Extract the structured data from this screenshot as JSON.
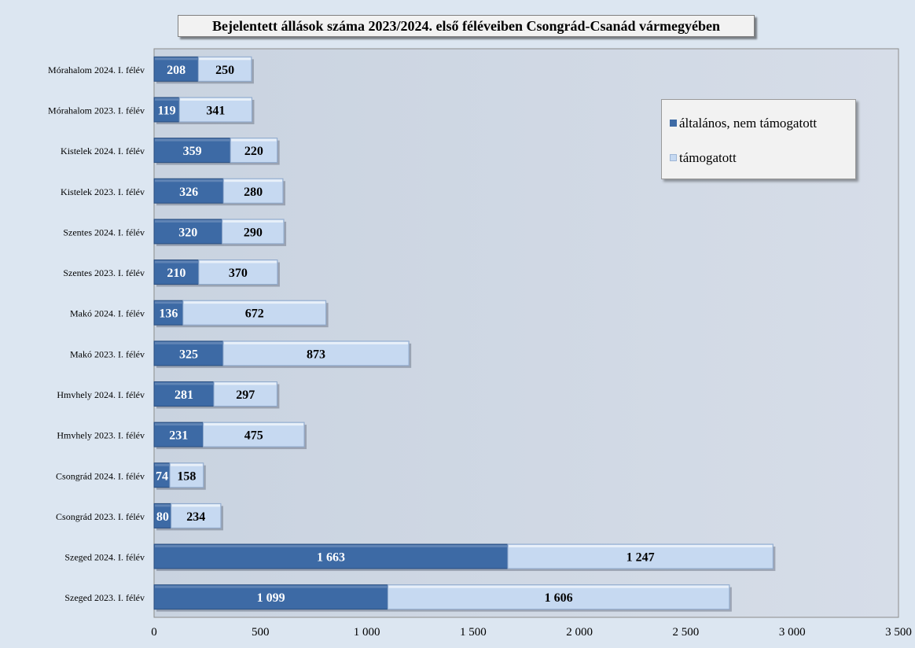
{
  "chart_data": {
    "type": "bar",
    "orientation": "horizontal",
    "stacked": true,
    "title": "Bejelentett állások száma 2023/2024. első féléveiben Csongrád-Csanád vármegyében",
    "categories": [
      "Szeged 2023. I. félév",
      "Szeged 2024. I. félév",
      "Csongrád 2023. I. félév",
      "Csongrád 2024. I. félév",
      "Hmvhely 2023. I. félév",
      "Hmvhely 2024. I. félév",
      "Makó 2023. I. félév",
      "Makó 2024. I. félév",
      "Szentes 2023. I. félév",
      "Szentes 2024. I. félév",
      "Kistelek 2023. I. félév",
      "Kistelek 2024. I. félév",
      "Mórahalom 2023. I. félév",
      "Mórahalom 2024. I. félév"
    ],
    "series": [
      {
        "name": "általános, nem támogatott",
        "color": "#3d6aa5",
        "values": [
          1099,
          1663,
          80,
          74,
          231,
          281,
          325,
          136,
          210,
          320,
          326,
          359,
          119,
          208
        ],
        "labels": [
          "1 099",
          "1 663",
          "80",
          "74",
          "231",
          "281",
          "325",
          "136",
          "210",
          "320",
          "326",
          "359",
          "119",
          "208"
        ]
      },
      {
        "name": "támogatott",
        "color": "#c6d9f1",
        "values": [
          1606,
          1247,
          234,
          158,
          475,
          297,
          873,
          672,
          370,
          290,
          280,
          220,
          341,
          250
        ],
        "labels": [
          "1 606",
          "1 247",
          "234",
          "158",
          "475",
          "297",
          "873",
          "672",
          "370",
          "290",
          "280",
          "220",
          "341",
          "250"
        ]
      }
    ],
    "xlim": [
      0,
      3500
    ],
    "xticks": [
      0,
      500,
      1000,
      1500,
      2000,
      2500,
      3000,
      3500
    ],
    "xtick_labels": [
      "0",
      "500",
      "1 000",
      "1 500",
      "2 000",
      "2 500",
      "3 000",
      "3 500"
    ],
    "xlabel": "",
    "ylabel": "",
    "grid": false,
    "legend_position": "upper-right"
  }
}
